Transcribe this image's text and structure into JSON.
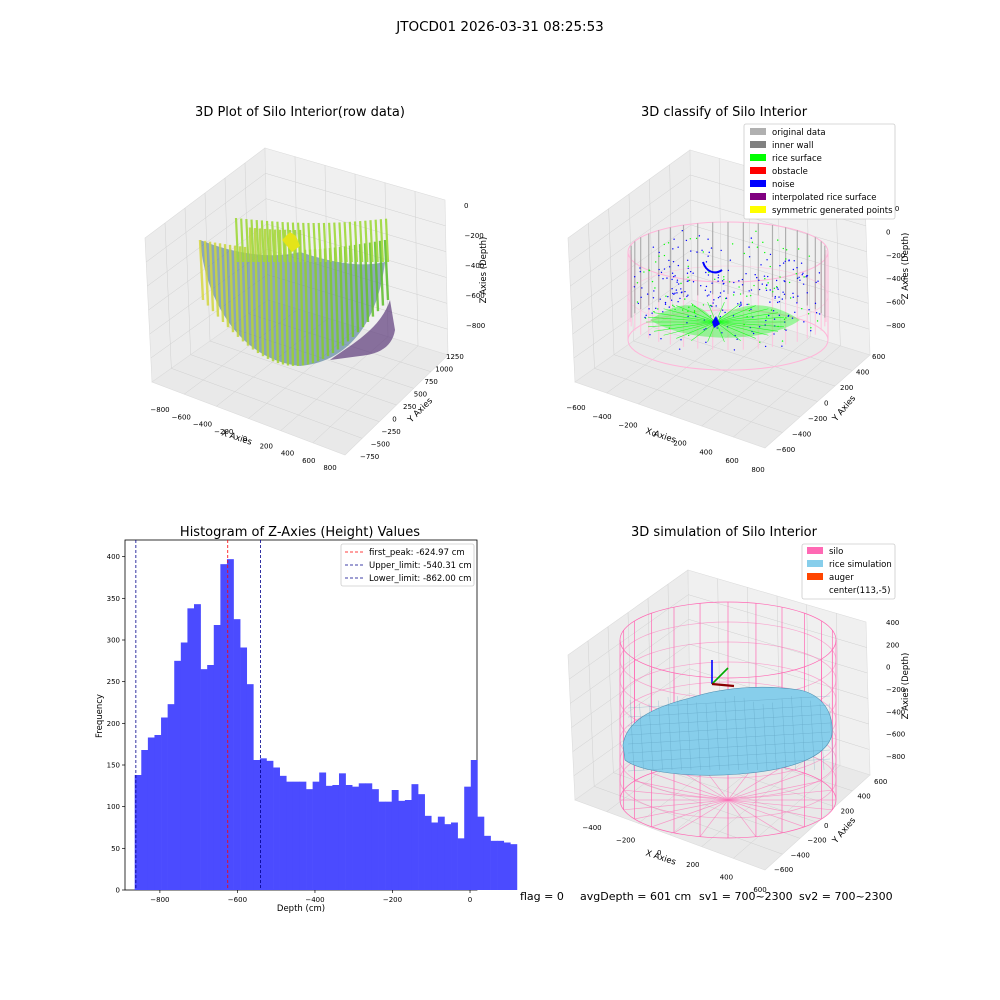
{
  "figure_title": "JTOCD01 2026-03-31 08:25:53",
  "footer": {
    "flag": "flag = 0",
    "avg_depth": "avgDepth = 601 cm",
    "sv1": "sv1 = 700~2300",
    "sv2": "sv2 = 700~2300"
  },
  "colors": {
    "original": "#b0b0b0",
    "inner_wall": "#808080",
    "rice_surface": "#00ff00",
    "obstacle": "#ff0000",
    "noise": "#0000ff",
    "interpolated": "#800080",
    "symmetric": "#ffff00",
    "silo": "#ff69b4",
    "rice_sim": "#87ceeb",
    "auger": "#ff4500",
    "hist_bar": "#4b4bff"
  },
  "chart_data": [
    {
      "type": "scatter3d",
      "title": "3D Plot of Silo Interior(row data)",
      "xlabel": "X Axies",
      "ylabel": "Y Axies",
      "zlabel": "Z Axies (Depth)",
      "xticks": [
        "−800",
        "−600",
        "−400",
        "−200",
        "0",
        "200",
        "400",
        "600",
        "800"
      ],
      "yticks": [
        "−750",
        "−500",
        "−250",
        "0",
        "250",
        "500",
        "750",
        "1000",
        "1250"
      ],
      "zticks": [
        "−800",
        "−600",
        "−400",
        "−200",
        "0"
      ],
      "xlim": [
        -850,
        850
      ],
      "ylim": [
        -800,
        1300
      ],
      "zlim": [
        -900,
        0
      ]
    },
    {
      "type": "scatter3d",
      "title": "3D classify of Silo Interior",
      "xlabel": "X Axies",
      "ylabel": "Y Axies",
      "zlabel": "Z Axies (Depth)",
      "xticks": [
        "−600",
        "−400",
        "−200",
        "0",
        "200",
        "400",
        "600",
        "800"
      ],
      "yticks": [
        "−600",
        "−400",
        "−200",
        "0",
        "200",
        "400",
        "600"
      ],
      "zticks": [
        "−800",
        "−600",
        "−400",
        "−200",
        "0",
        "200"
      ],
      "legend": [
        "original data",
        "inner wall",
        "rice surface",
        "obstacle",
        "noise",
        "interpolated rice surface",
        "symmetric generated points"
      ],
      "legend_position": "top-right"
    },
    {
      "type": "bar",
      "title": "Histogram of Z-Axies (Height) Values",
      "xlabel": "Depth (cm)",
      "ylabel": "Frequency",
      "xlim": [
        -890,
        18
      ],
      "ylim": [
        0,
        420
      ],
      "xticks": [
        -800,
        -600,
        -400,
        -200,
        0
      ],
      "yticks": [
        0,
        50,
        100,
        150,
        200,
        250,
        300,
        350,
        400
      ],
      "bin_start": -865,
      "bin_width": 17,
      "values": [
        138,
        168,
        183,
        186,
        207,
        223,
        275,
        297,
        338,
        343,
        265,
        270,
        318,
        391,
        397,
        325,
        291,
        247,
        156,
        158,
        155,
        147,
        137,
        130,
        130,
        130,
        121,
        130,
        141,
        125,
        126,
        140,
        126,
        124,
        128,
        128,
        121,
        106,
        106,
        120,
        107,
        108,
        127,
        115,
        89,
        81,
        88,
        79,
        81,
        62,
        124,
        156,
        88,
        65,
        59,
        59,
        57,
        55
      ],
      "lines": [
        {
          "label": "first_peak: -624.97 cm",
          "x": -624.97,
          "color": "#ff0000"
        },
        {
          "label": "Upper_limit: -540.31 cm",
          "x": -540.31,
          "color": "#00008b"
        },
        {
          "label": "Lower_limit: -862.00 cm",
          "x": -862.0,
          "color": "#00008b"
        }
      ],
      "legend_position": "top-right"
    },
    {
      "type": "surface3d",
      "title": "3D simulation of Silo Interior",
      "xlabel": "X Axies",
      "ylabel": "Y Axies",
      "zlabel": "Z Axies (Depth)",
      "xticks": [
        "−400",
        "−200",
        "0",
        "200",
        "400",
        "600"
      ],
      "yticks": [
        "−600",
        "−400",
        "−200",
        "0",
        "200",
        "400",
        "600"
      ],
      "zticks": [
        "−800",
        "−600",
        "−400",
        "−200",
        "0",
        "200",
        "400"
      ],
      "legend": [
        "silo",
        "rice simulation",
        "auger",
        "center(113,-5)"
      ],
      "legend_position": "top-right"
    }
  ]
}
